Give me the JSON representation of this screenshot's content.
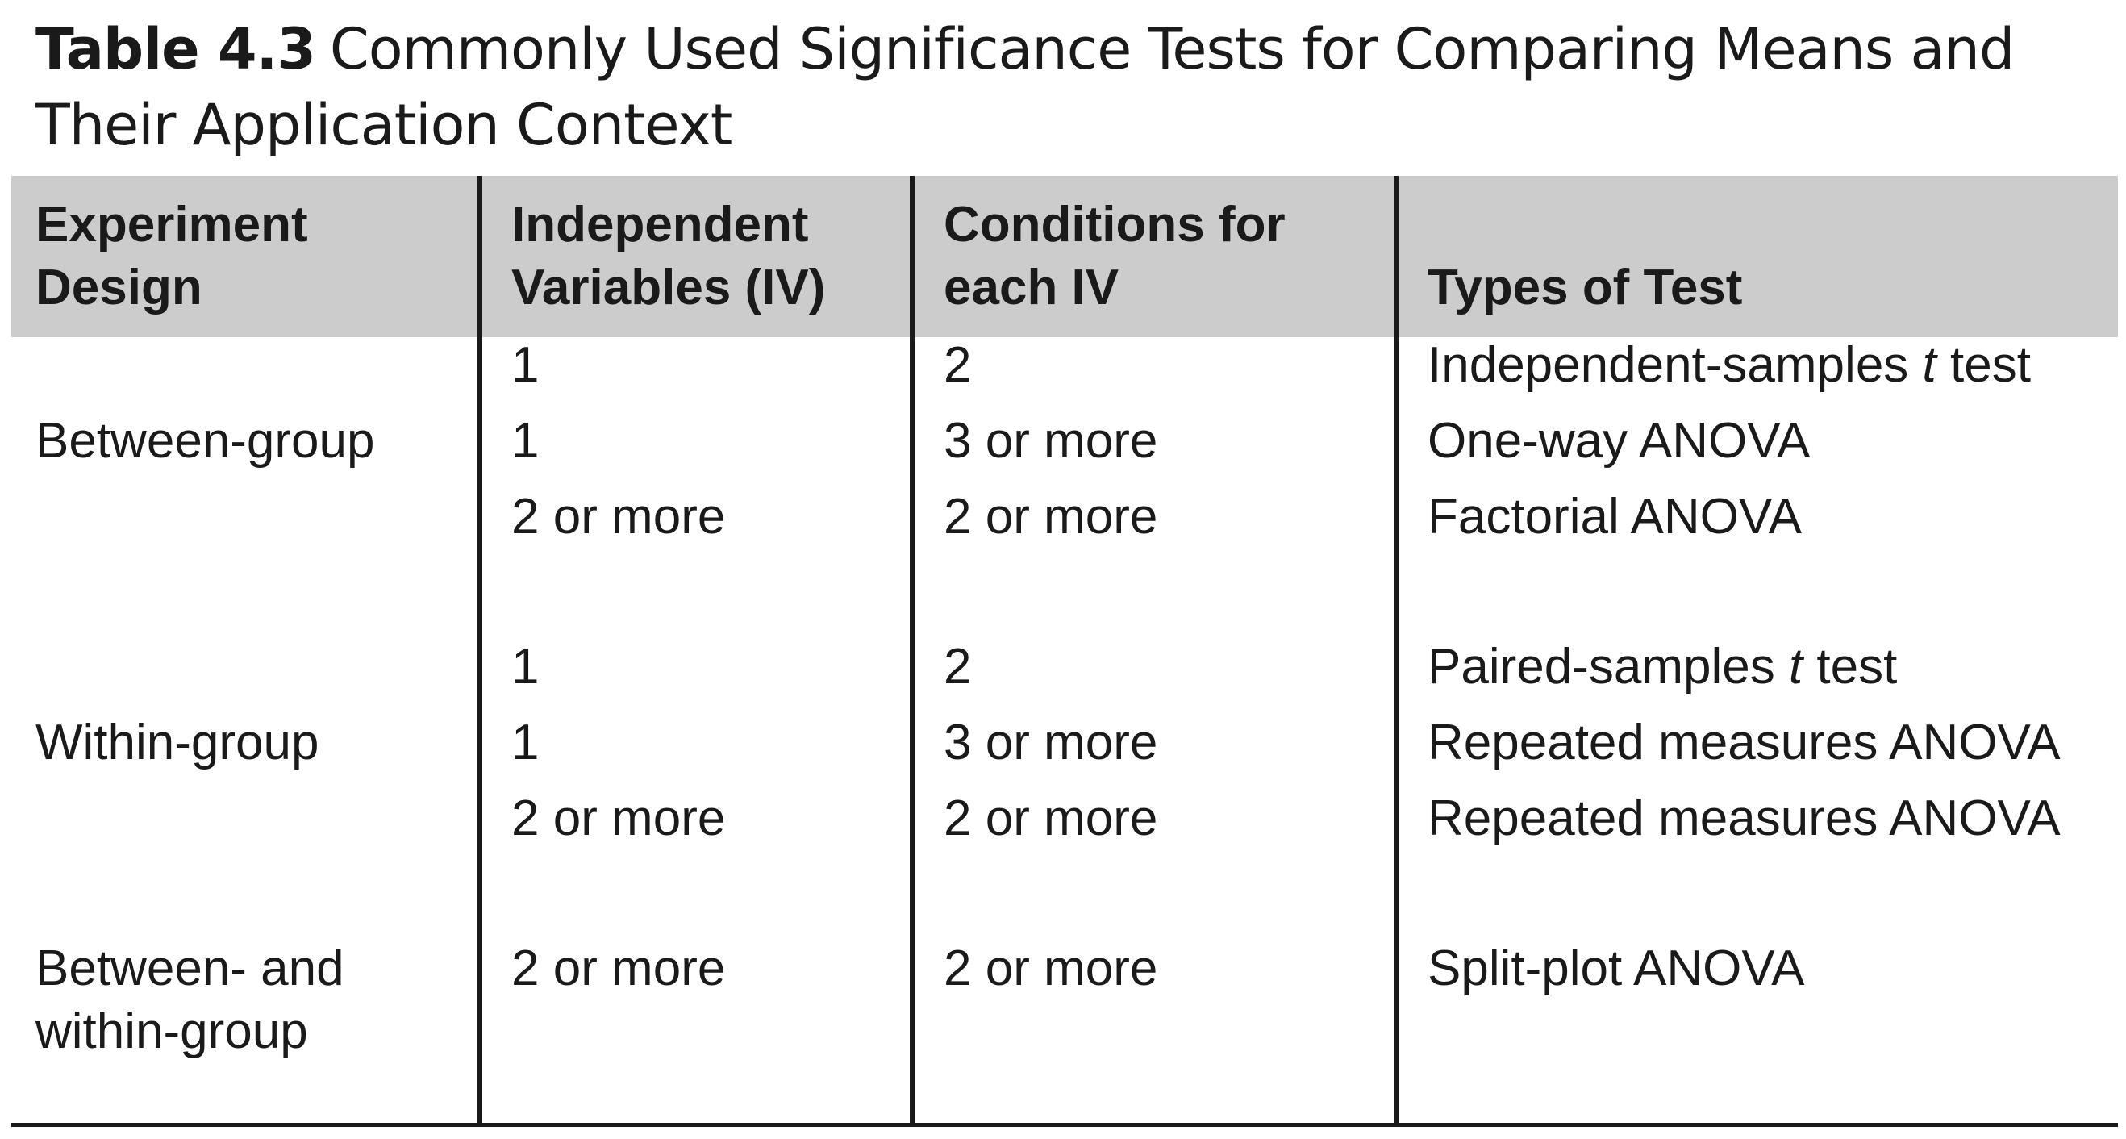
{
  "caption": {
    "label": "Table 4.3",
    "title": "Commonly Used Significance Tests for Comparing Means and Their Application Context"
  },
  "headers": {
    "design": [
      "Experiment",
      "Design"
    ],
    "iv": [
      "Independent",
      "Variables (IV)"
    ],
    "conditions": [
      "Conditions for",
      "each IV"
    ],
    "test": "Types of Test"
  },
  "groups": [
    {
      "design": [
        "Between-group"
      ],
      "rows": [
        {
          "iv": "1",
          "conditions": "2",
          "test": {
            "pre": "Independent-samples ",
            "ital": "t",
            "post": " test"
          }
        },
        {
          "iv": "1",
          "conditions": "3 or more",
          "test": {
            "pre": "One-way ANOVA",
            "ital": "",
            "post": ""
          }
        },
        {
          "iv": "2 or more",
          "conditions": "2 or more",
          "test": {
            "pre": "Factorial ANOVA",
            "ital": "",
            "post": ""
          }
        }
      ]
    },
    {
      "design": [
        "Within-group"
      ],
      "rows": [
        {
          "iv": "1",
          "conditions": "2",
          "test": {
            "pre": "Paired-samples ",
            "ital": "t",
            "post": " test"
          }
        },
        {
          "iv": "1",
          "conditions": "3 or more",
          "test": {
            "pre": "Repeated measures ANOVA",
            "ital": "",
            "post": ""
          }
        },
        {
          "iv": "2 or more",
          "conditions": "2 or more",
          "test": {
            "pre": "Repeated measures ANOVA",
            "ital": "",
            "post": ""
          }
        }
      ]
    },
    {
      "design": [
        "Between- and",
        "within-group"
      ],
      "rows": [
        {
          "iv": "2 or more",
          "conditions": "2 or more",
          "test": {
            "pre": "Split-plot ANOVA",
            "ital": "",
            "post": ""
          }
        }
      ]
    }
  ]
}
